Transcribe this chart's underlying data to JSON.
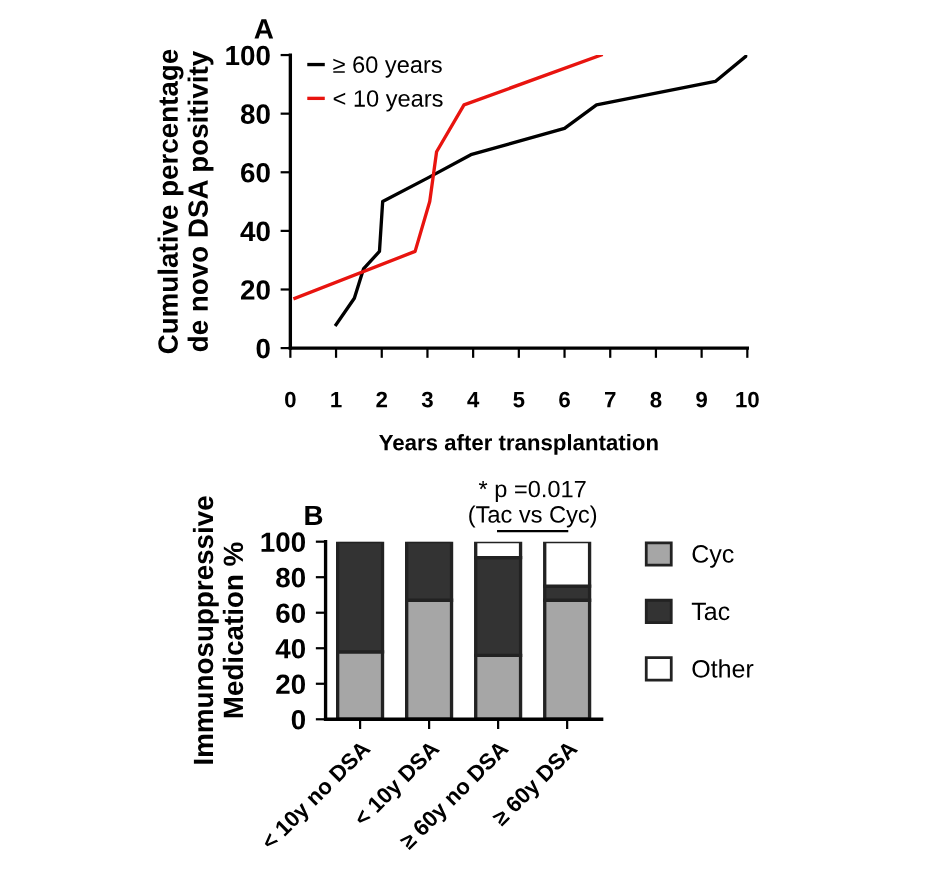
{
  "chart_data": [
    {
      "type": "line",
      "title": "A",
      "xlabel": "Years after transplantation",
      "ylabel": "Cumulative percentage\nde novo DSA positivity",
      "xlim": [
        0,
        10
      ],
      "ylim": [
        0,
        100
      ],
      "xticks": [
        0,
        1,
        2,
        3,
        4,
        5,
        6,
        7,
        8,
        9,
        10
      ],
      "yticks": [
        0,
        20,
        40,
        60,
        80,
        100
      ],
      "grid": false,
      "legend": "top left",
      "marker": "none",
      "line_style": "solid",
      "series": [
        {
          "name": "≥ 60 years",
          "color": "#000000",
          "x": [
            1.0,
            1.4,
            1.6,
            1.95,
            2.02,
            3.0,
            3.95,
            6.0,
            6.7,
            9.3,
            10.0
          ],
          "values": [
            8,
            17,
            27,
            33,
            50,
            58,
            66,
            75,
            83,
            91,
            100
          ]
        },
        {
          "name": "< 10 years",
          "color": "#e8140f",
          "x": [
            0.1,
            2.73,
            3.05,
            3.2,
            3.8,
            6.8
          ],
          "values": [
            17,
            33,
            50,
            67,
            83,
            100
          ]
        }
      ]
    },
    {
      "type": "bar",
      "stacked": true,
      "title": "B",
      "ylabel": "Immunosuppressive\nMedication %",
      "categories": [
        "< 10y no DSA",
        "< 10y DSA",
        "≥ 60y no DSA",
        "≥ 60y DSA"
      ],
      "ylim": [
        0,
        100
      ],
      "yticks": [
        0,
        20,
        40,
        60,
        80,
        100
      ],
      "grid": false,
      "legend": "right",
      "annotations": [
        "* p =0.017\n(Tac vs Cyc)"
      ],
      "series": [
        {
          "name": "Cyc",
          "color": "#a6a6a6",
          "values": [
            38,
            67,
            36,
            67
          ]
        },
        {
          "name": "Tac",
          "color": "#333333",
          "values": [
            62,
            33,
            55,
            8
          ]
        },
        {
          "name": "Other",
          "color": "#ffffff",
          "values": [
            null,
            null,
            9,
            25
          ]
        }
      ]
    }
  ]
}
